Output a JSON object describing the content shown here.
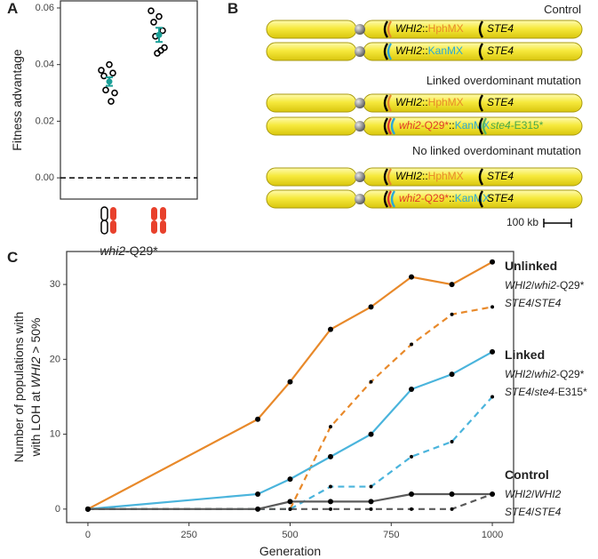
{
  "chart_data": [
    {
      "type": "strip",
      "panel": "A",
      "ylabel": "Fitness advantage",
      "xlabel": "whi2-Q29*",
      "categories": [
        null,
        null
      ],
      "points": [
        [
          0.038,
          0.04,
          0.036,
          0.037,
          0.031,
          0.03,
          0.027
        ],
        [
          0.059,
          0.057,
          0.055,
          0.052,
          0.05,
          0.046,
          0.045,
          0.044
        ]
      ],
      "mean": [
        0.034,
        0.0505
      ],
      "error": [
        0.0015,
        0.0025
      ],
      "point_color": "#000000",
      "mean_color": "#1a9e96",
      "ylim": [
        -0.0075,
        0.0625
      ],
      "yticks": [
        {
          "value": 0,
          "label": "0.00"
        },
        0.02,
        0.04,
        0.06
      ],
      "reference_line": 0
    },
    {
      "type": "line",
      "panel": "C",
      "xlabel": "Generation",
      "ylabel": [
        "Number of populations with",
        "with LOH at WHI2 > 50%"
      ],
      "x": [
        0,
        420,
        500,
        600,
        700,
        800,
        900,
        1000
      ],
      "groups": [
        {
          "name": "Unlinked",
          "color": "#e8892a"
        },
        {
          "name": "Linked",
          "color": "#4ab4dc"
        },
        {
          "name": "Control",
          "color": "#5a5a5a"
        }
      ],
      "series": [
        {
          "name": "WHI2/whi2-Q29*",
          "color": "#e8892a",
          "dashed": false,
          "values": [
            0,
            12,
            17,
            24,
            27,
            31,
            30,
            33
          ]
        },
        {
          "name": "STE4/STE4",
          "color": "#e8892a",
          "dashed": true,
          "values": [
            0,
            0,
            0,
            11,
            17,
            22,
            26,
            27
          ]
        },
        {
          "name": "WHI2/whi2-Q29*",
          "color": "#4ab4dc",
          "dashed": false,
          "values": [
            0,
            2,
            4,
            7,
            10,
            16,
            18,
            21
          ]
        },
        {
          "name": "STE4/ste4-E315*",
          "color": "#4ab4dc",
          "dashed": true,
          "values": [
            0,
            0,
            0,
            3,
            3,
            7,
            9,
            15
          ]
        },
        {
          "name": "WHI2/WHI2",
          "color": "#5a5a5a",
          "dashed": false,
          "values": [
            0,
            0,
            1,
            1,
            1,
            2,
            2,
            2
          ]
        },
        {
          "name": "STE4/STE4",
          "color": "#5a5a5a",
          "dashed": true,
          "values": [
            0,
            0,
            0,
            0,
            0,
            0,
            0,
            2
          ]
        }
      ],
      "xlim": [
        -52.6,
        1052.6
      ],
      "xticks": [
        0,
        250,
        500,
        750,
        1000
      ],
      "ylim": [
        -1.8,
        34.4
      ],
      "yticks": [
        0,
        10,
        20,
        30
      ]
    }
  ],
  "diagram": {
    "panel": "B",
    "scale_label": "100 kb",
    "groups": [
      {
        "title": "Control",
        "chromosomes": [
          {
            "loci": [
              {
                "marks": [
                  "#000000",
                  "#e8892a"
                ],
                "label": [
                  {
                    "text": "WHI2::",
                    "color": "#000000"
                  },
                  {
                    "text": "HphMX",
                    "color": "#e8892a"
                  }
                ]
              },
              {
                "marks": [
                  "#000000"
                ],
                "label": [
                  {
                    "text": "STE4",
                    "color": "#000000"
                  }
                ]
              }
            ]
          },
          {
            "loci": [
              {
                "marks": [
                  "#000000",
                  "#2aa8d8"
                ],
                "label": [
                  {
                    "text": "WHI2::",
                    "color": "#000000"
                  },
                  {
                    "text": "KanMX",
                    "color": "#2aa8d8"
                  }
                ]
              },
              {
                "marks": [
                  "#000000"
                ],
                "label": [
                  {
                    "text": "STE4",
                    "color": "#000000"
                  }
                ]
              }
            ]
          }
        ]
      },
      {
        "title": "Linked overdominant mutation",
        "chromosomes": [
          {
            "loci": [
              {
                "marks": [
                  "#000000",
                  "#e8892a"
                ],
                "label": [
                  {
                    "text": "WHI2::",
                    "color": "#000000"
                  },
                  {
                    "text": "HphMX",
                    "color": "#e8892a"
                  }
                ]
              },
              {
                "marks": [
                  "#000000"
                ],
                "label": [
                  {
                    "text": "STE4",
                    "color": "#000000"
                  }
                ]
              }
            ]
          },
          {
            "loci": [
              {
                "marks": [
                  "#000000",
                  "#e03a2a",
                  "#2aa8d8"
                ],
                "label": [
                  {
                    "text": "whi2-Q29*",
                    "color": "#e03a2a"
                  },
                  {
                    "text": "::",
                    "color": "#000000"
                  },
                  {
                    "text": "KanMX",
                    "color": "#2aa8d8"
                  }
                ]
              },
              {
                "marks": [
                  "#000000",
                  "#5cb85c"
                ],
                "label": [
                  {
                    "text": "ste4-E315*",
                    "color": "#4aa84a"
                  }
                ]
              }
            ]
          }
        ]
      },
      {
        "title": "No linked overdominant mutation",
        "chromosomes": [
          {
            "loci": [
              {
                "marks": [
                  "#000000",
                  "#e8892a"
                ],
                "label": [
                  {
                    "text": "WHI2::",
                    "color": "#000000"
                  },
                  {
                    "text": "HphMX",
                    "color": "#e8892a"
                  }
                ]
              },
              {
                "marks": [
                  "#000000"
                ],
                "label": [
                  {
                    "text": "STE4",
                    "color": "#000000"
                  }
                ]
              }
            ]
          },
          {
            "loci": [
              {
                "marks": [
                  "#000000",
                  "#e03a2a",
                  "#2aa8d8"
                ],
                "label": [
                  {
                    "text": "whi2-Q29*",
                    "color": "#e03a2a"
                  },
                  {
                    "text": "::",
                    "color": "#000000"
                  },
                  {
                    "text": "KanMX",
                    "color": "#2aa8d8"
                  }
                ]
              },
              {
                "marks": [
                  "#000000"
                ],
                "label": [
                  {
                    "text": "STE4",
                    "color": "#000000"
                  }
                ]
              }
            ]
          }
        ]
      }
    ]
  }
}
